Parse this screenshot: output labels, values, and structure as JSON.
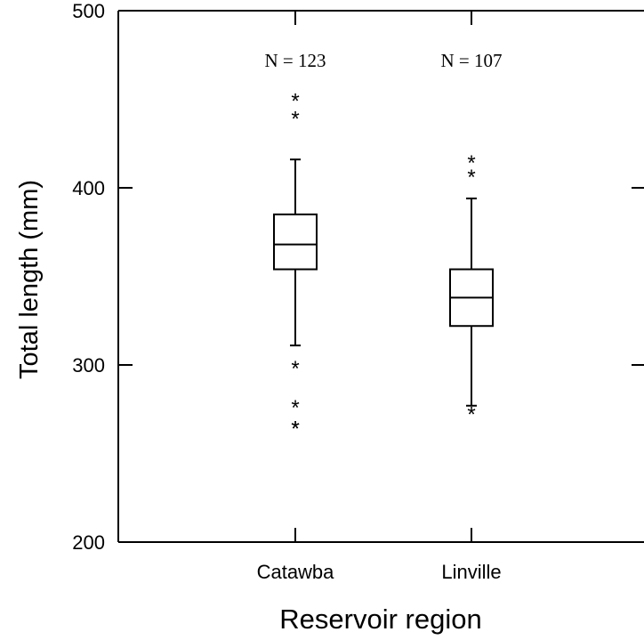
{
  "chart_data": {
    "type": "boxplot",
    "xlabel": "Reservoir region",
    "ylabel": "Total length (mm)",
    "ylim": [
      200,
      500
    ],
    "yticks": [
      200,
      300,
      400,
      500
    ],
    "categories": [
      "Catawba",
      "Linville"
    ],
    "grid": false,
    "boxes": [
      {
        "category": "Catawba",
        "n_label": "N = 123",
        "whisker_low": 311,
        "q1": 354,
        "median": 368,
        "q3": 385,
        "whisker_high": 416,
        "outliers": [
          450,
          440,
          299,
          277,
          265,
          265
        ]
      },
      {
        "category": "Linville",
        "n_label": "N = 107",
        "whisker_low": 277,
        "q1": 322,
        "median": 338,
        "q3": 354,
        "whisker_high": 394,
        "outliers": [
          415,
          407,
          273
        ]
      }
    ]
  }
}
